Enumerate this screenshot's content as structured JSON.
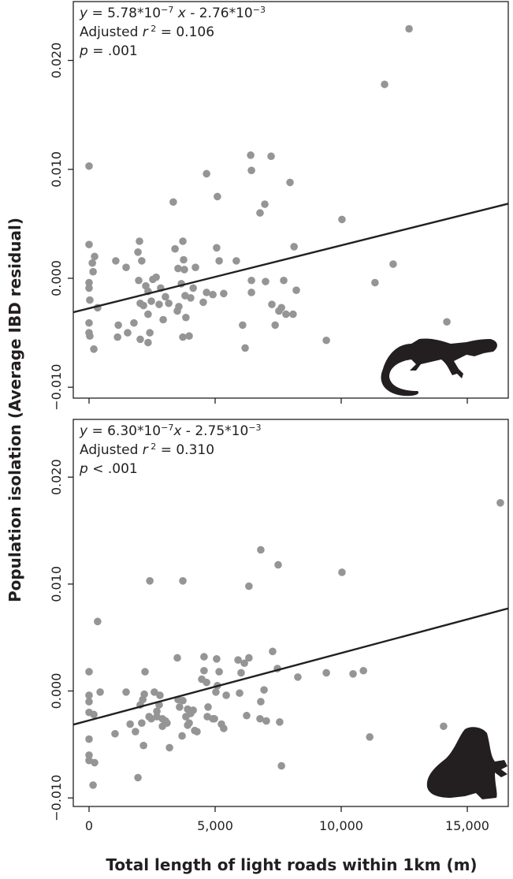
{
  "chart_data": [
    {
      "type": "scatter",
      "annotation": [
        [
          {
            "text": "y",
            "style": "italic"
          },
          {
            "text": " = 5.78*10"
          },
          {
            "text": "−7",
            "style": "sup"
          },
          {
            "text": " x",
            "style": "italic"
          },
          {
            "text": " - 2.76*10"
          },
          {
            "text": "−3",
            "style": "sup"
          }
        ],
        [
          {
            "text": "Adjusted "
          },
          {
            "text": "r",
            "style": "italic"
          },
          {
            "text": " 2",
            "style": "sup"
          },
          {
            "text": " = 0.106"
          }
        ],
        [
          {
            "text": "p",
            "style": "italic"
          },
          {
            "text": " = .001"
          }
        ]
      ],
      "fit": {
        "slope": 5.78e-07,
        "intercept": -0.00276
      },
      "color": "#959595",
      "xlim": [
        -625,
        16625
      ],
      "ylim": [
        -0.011,
        0.0254
      ],
      "xticks": [
        0,
        5000,
        10000,
        15000
      ],
      "yticks": [
        {
          "value": -0.01,
          "label": "−0.010"
        },
        {
          "value": 0,
          "label": "0.000"
        },
        {
          "value": 0.01,
          "label": "0.010"
        },
        {
          "value": 0.02,
          "label": "0.020"
        }
      ],
      "x": [
        0,
        0,
        0,
        0,
        30,
        0,
        0,
        30,
        130,
        220,
        190,
        340,
        160,
        1060,
        1130,
        1160,
        1470,
        1530,
        1780,
        1940,
        1970,
        2000,
        2030,
        2030,
        2090,
        2160,
        2250,
        2340,
        2340,
        2340,
        2410,
        2470,
        2530,
        2660,
        2780,
        2840,
        2940,
        3030,
        3160,
        3340,
        3410,
        3500,
        3530,
        3560,
        3660,
        3720,
        3720,
        3750,
        3780,
        3810,
        3840,
        3970,
        4030,
        4130,
        4220,
        4530,
        4660,
        4660,
        4910,
        5060,
        5090,
        5160,
        5340,
        5840,
        6090,
        6190,
        6410,
        6440,
        6440,
        6440,
        6780,
        6970,
        7000,
        7220,
        7250,
        7380,
        7530,
        7630,
        7720,
        7810,
        7970,
        8090,
        8130,
        8220,
        9410,
        10030,
        11340,
        12060,
        11720,
        12690,
        14190
      ],
      "values": [
        0.0103,
        0.0031,
        -0.0004,
        -0.0009,
        -0.002,
        -0.0041,
        -0.005,
        -0.0053,
        0.0014,
        0.002,
        -0.0065,
        -0.0027,
        0.0006,
        0.0016,
        -0.0054,
        -0.0043,
        0.001,
        -0.005,
        -0.0041,
        0.0024,
        -0.0002,
        0.0034,
        -0.0023,
        -0.0056,
        0.0016,
        -0.0025,
        -0.0007,
        -0.0012,
        -0.0033,
        -0.0059,
        -0.005,
        -0.0021,
        -0.0001,
        0.0001,
        -0.0024,
        -0.0009,
        -0.0038,
        -0.0017,
        -0.0023,
        0.007,
        0.0027,
        -0.003,
        0.0009,
        -0.0026,
        -0.0005,
        0.0034,
        -0.0054,
        0.0017,
        0.0008,
        -0.0016,
        -0.0036,
        -0.0053,
        -0.0018,
        -0.0009,
        0.001,
        -0.0022,
        0.0096,
        -0.0013,
        -0.0015,
        0.0028,
        0.0075,
        0.0016,
        -0.0014,
        0.0016,
        -0.0043,
        -0.0064,
        0.0113,
        0.0099,
        -0.0002,
        -0.0013,
        0.006,
        0.0068,
        -0.0003,
        0.0112,
        -0.0024,
        -0.0043,
        -0.003,
        -0.0027,
        -0.0002,
        -0.0033,
        0.0088,
        -0.0033,
        0.0029,
        -0.0011,
        -0.0057,
        0.0054,
        -0.0004,
        0.0013,
        0.0178,
        0.0229,
        -0.004
      ]
    },
    {
      "type": "scatter",
      "annotation": [
        [
          {
            "text": "y",
            "style": "italic"
          },
          {
            "text": " = 6.30*10"
          },
          {
            "text": "−7",
            "style": "sup"
          },
          {
            "text": "x",
            "style": "italic"
          },
          {
            "text": " - 2.75*10"
          },
          {
            "text": "−3",
            "style": "sup"
          }
        ],
        [
          {
            "text": "Adjusted "
          },
          {
            "text": "r",
            "style": "italic"
          },
          {
            "text": " 2",
            "style": "sup"
          },
          {
            "text": " = 0.310"
          }
        ],
        [
          {
            "text": "p",
            "style": "italic"
          },
          {
            "text": " < .001"
          }
        ]
      ],
      "fit": {
        "slope": 6.3e-07,
        "intercept": -0.00275
      },
      "color": "#959595",
      "xlim": [
        -625,
        16625
      ],
      "ylim": [
        -0.0108,
        0.0254
      ],
      "xticks": [
        0,
        {
          "value": 5000,
          "label": "5,000"
        },
        {
          "value": 10000,
          "label": "10,000"
        },
        {
          "value": 15000,
          "label": "15,000"
        }
      ],
      "yticks": [
        {
          "value": -0.01,
          "label": "−0.010"
        },
        {
          "value": 0,
          "label": "0.000"
        },
        {
          "value": 0.01,
          "label": "0.010"
        },
        {
          "value": 0.02,
          "label": "0.020"
        }
      ],
      "x": [
        0,
        0,
        0,
        0,
        0,
        0,
        0,
        160,
        220,
        190,
        340,
        440,
        1030,
        1470,
        1630,
        1840,
        1940,
        2030,
        2090,
        2130,
        2160,
        2190,
        2220,
        2380,
        2410,
        2470,
        2590,
        2690,
        2690,
        2780,
        2810,
        2910,
        2910,
        3030,
        3090,
        3190,
        3500,
        3530,
        3590,
        3690,
        3720,
        3720,
        3840,
        3910,
        3910,
        3970,
        4030,
        4130,
        4190,
        4280,
        4470,
        4560,
        4560,
        4660,
        4690,
        4720,
        4910,
        4970,
        5030,
        5060,
        5090,
        5160,
        5250,
        5340,
        5440,
        5910,
        5970,
        6030,
        6160,
        6250,
        6340,
        6340,
        6780,
        6810,
        6810,
        6940,
        7030,
        7280,
        7470,
        7500,
        7560,
        7630,
        8280,
        9410,
        10030,
        10470,
        10880,
        11130,
        14060,
        16310
      ],
      "values": [
        0.0018,
        -0.0004,
        -0.001,
        -0.002,
        -0.0045,
        -0.006,
        -0.0065,
        -0.0088,
        -0.0067,
        -0.0022,
        0.0065,
        -0.0001,
        -0.004,
        -0.0001,
        -0.0031,
        -0.0038,
        -0.0081,
        -0.0013,
        -0.003,
        -0.0008,
        -0.0051,
        -0.0003,
        0.0018,
        -0.0024,
        0.0103,
        -0.0026,
        -0.0001,
        -0.0024,
        -0.0019,
        -0.0013,
        -0.0004,
        -0.0026,
        -0.0033,
        -0.0028,
        -0.003,
        -0.0053,
        0.0031,
        -0.0008,
        -0.0015,
        -0.0042,
        0.0103,
        -0.0009,
        -0.0024,
        -0.0017,
        -0.0032,
        -0.003,
        -0.0021,
        -0.0018,
        -0.0037,
        -0.0038,
        0.0011,
        0.0032,
        0.0019,
        0.0008,
        -0.0024,
        -0.0015,
        -0.0026,
        -0.0026,
        -0.0001,
        0.003,
        0.0005,
        0.0018,
        -0.0031,
        -0.0035,
        -0.0004,
        0.0029,
        -0.0002,
        0.0017,
        0.0026,
        -0.0023,
        0.0098,
        0.0031,
        -0.0026,
        0.0132,
        -0.001,
        0.0001,
        -0.0028,
        0.0037,
        0.0021,
        0.0118,
        -0.0029,
        -0.007,
        0.0013,
        0.0017,
        0.0111,
        0.0016,
        0.0019,
        -0.0043,
        -0.0033,
        0.0176
      ]
    }
  ],
  "ylabel": "Population isolation (Average IBD residual)",
  "xlabel": "Total length of light roads within 1km (m)"
}
